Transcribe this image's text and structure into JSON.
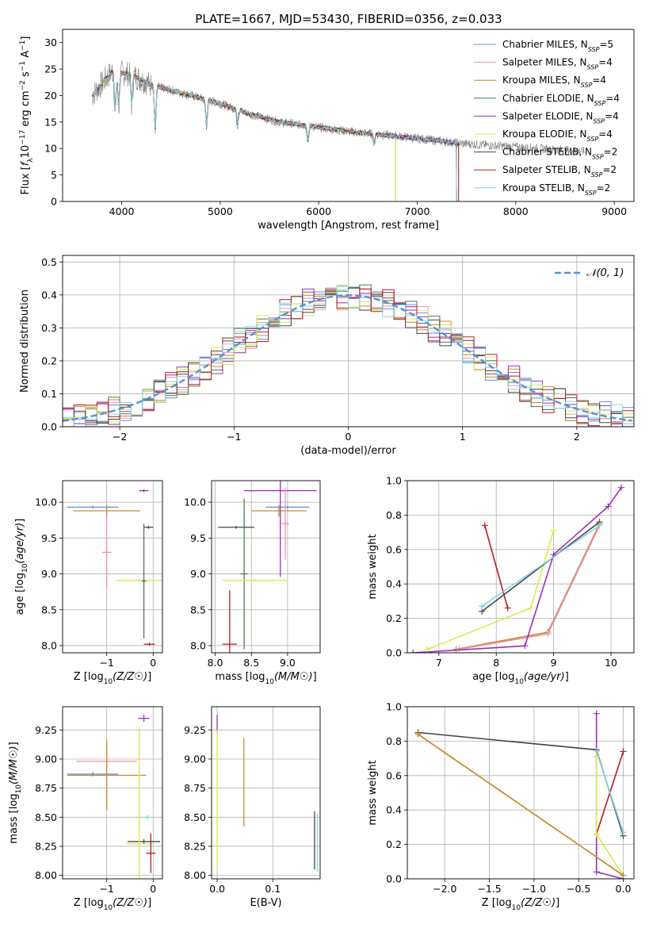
{
  "figure": {
    "title": "PLATE=1667, MJD=53430, FIBERID=0356, z=0.033"
  },
  "models": [
    {
      "name": "Chabrier MILES",
      "nssp": "5",
      "color": "#6a8fdc"
    },
    {
      "name": "Salpeter MILES",
      "nssp": "4",
      "color": "#e893b4"
    },
    {
      "name": "Kroupa MILES",
      "nssp": "4",
      "color": "#c88a2c"
    },
    {
      "name": "Chabrier ELODIE",
      "nssp": "4",
      "color": "#4e7a4e"
    },
    {
      "name": "Salpeter ELODIE",
      "nssp": "4",
      "color": "#9a2fb4"
    },
    {
      "name": "Kroupa ELODIE",
      "nssp": "4",
      "color": "#dde84a"
    },
    {
      "name": "Chabrier STELIB",
      "nssp": "2",
      "color": "#444444"
    },
    {
      "name": "Salpeter STELIB",
      "nssp": "2",
      "color": "#b41e1e"
    },
    {
      "name": "Kroupa STELIB",
      "nssp": "2",
      "color": "#7fd6e6"
    }
  ],
  "chart_data": [
    {
      "id": "spectrum",
      "type": "line",
      "xlabel": "wavelength [Angstrom, rest frame]",
      "xlim": [
        3400,
        9200
      ],
      "ylim": [
        0,
        32.5
      ],
      "xticks": [
        4000,
        5000,
        6000,
        7000,
        8000,
        9000
      ],
      "yticks": [
        0,
        5,
        10,
        15,
        20,
        25,
        30
      ],
      "x": [
        3700,
        3900,
        4100,
        4300,
        4500,
        4700,
        5000,
        5300,
        5600,
        6000,
        6400,
        6800,
        7200,
        7400
      ],
      "y": [
        20,
        24.5,
        24,
        22,
        21,
        20,
        18.5,
        16.5,
        15,
        14,
        13,
        12.3,
        11.5,
        11
      ],
      "observed_color": "#808080",
      "observed_end": 8700,
      "grid": false
    },
    {
      "id": "residuals",
      "type": "histogram",
      "xlabel": "(data-model)/error",
      "ylabel": "Normed distribution",
      "xlim": [
        -2.5,
        2.5
      ],
      "ylim": [
        0,
        0.52
      ],
      "xticks": [
        -2,
        -1,
        0,
        1,
        2
      ],
      "yticks": [
        0.0,
        0.1,
        0.2,
        0.3,
        0.4,
        0.5
      ],
      "bin_width": 0.1,
      "legend": "N(0,1)",
      "reference_curve": {
        "type": "gaussian",
        "mean": 0,
        "sigma": 1,
        "color": "#5b8fd6"
      },
      "grid": true
    },
    {
      "id": "age-vs-metallicity",
      "type": "error-cross",
      "xlabel": "Z [log10(Z/Z☉)]",
      "ylabel": "age [log10(age/yr)]",
      "xlim": [
        -1.95,
        0.2
      ],
      "ylim": [
        7.9,
        10.3
      ],
      "xticks": [
        -1,
        0
      ],
      "yticks": [
        8.0,
        8.5,
        9.0,
        9.5,
        10.0
      ],
      "points": [
        {
          "model": 0,
          "x": -1.3,
          "xerr": 0.55,
          "y": 9.93,
          "yerr": 0.02
        },
        {
          "model": 2,
          "x": -1.0,
          "xerr": 0.72,
          "y": 9.88,
          "yerr": 0.08
        },
        {
          "model": 1,
          "x": -1.0,
          "xerr": 0.1,
          "y": 9.3,
          "yerr": 0.5
        },
        {
          "model": 4,
          "x": -0.2,
          "xerr": 0.1,
          "y": 10.16,
          "yerr": 0.02
        },
        {
          "model": 6,
          "x": -0.1,
          "xerr": 0.1,
          "y": 9.65,
          "yerr": 0.02
        },
        {
          "model": 5,
          "x": -0.3,
          "xerr": 0.5,
          "y": 8.91,
          "yerr": 0.02
        },
        {
          "model": 7,
          "x": -0.08,
          "xerr": 0.12,
          "y": 8.02,
          "yerr": 0.02
        },
        {
          "model": 3,
          "x": -0.2,
          "xerr": 0.05,
          "y": 8.9,
          "yerr": 0.8
        }
      ]
    },
    {
      "id": "age-vs-mass",
      "type": "error-cross",
      "xlabel": "mass [log10(M/M☉)]",
      "xlim": [
        7.95,
        9.45
      ],
      "ylim": [
        7.9,
        10.3
      ],
      "xticks": [
        8.0,
        8.5,
        9.0
      ],
      "yticks": [
        8.0,
        8.5,
        9.0,
        9.5,
        10.0
      ],
      "points": [
        {
          "model": 0,
          "x": 9.0,
          "xerr": 0.3,
          "y": 9.93,
          "yerr": 0.02
        },
        {
          "model": 2,
          "x": 8.88,
          "xerr": 0.38,
          "y": 9.88,
          "yerr": 0.08
        },
        {
          "model": 4,
          "x": 8.9,
          "xerr": 0.5,
          "y": 10.16,
          "yerr": 1.2
        },
        {
          "model": 6,
          "x": 8.29,
          "xerr": 0.25,
          "y": 9.65,
          "yerr": 0.02
        },
        {
          "model": 3,
          "x": 8.4,
          "xerr": 0.05,
          "y": 9.0,
          "yerr": 1.05
        },
        {
          "model": 5,
          "x": 8.55,
          "xerr": 0.45,
          "y": 8.91,
          "yerr": 0.02
        },
        {
          "model": 7,
          "x": 8.2,
          "xerr": 0.1,
          "y": 8.02,
          "yerr": 0.75
        },
        {
          "model": 1,
          "x": 8.97,
          "xerr": 0.05,
          "y": 9.7,
          "yerr": 0.5
        }
      ]
    },
    {
      "id": "mass-weight-vs-age",
      "type": "line",
      "xlabel": "age [log10(age/yr)]",
      "ylabel": "mass weight",
      "xlim": [
        6.45,
        10.4
      ],
      "ylim": [
        0,
        1.0
      ],
      "xticks": [
        7,
        8,
        9,
        10
      ],
      "yticks": [
        0.0,
        0.2,
        0.4,
        0.6,
        0.8,
        1.0
      ],
      "series": [
        {
          "model": 2,
          "x": [
            7.3,
            8.9,
            9.8
          ],
          "y": [
            0.02,
            0.12,
            0.75
          ]
        },
        {
          "model": 1,
          "x": [
            7.35,
            8.9,
            9.8
          ],
          "y": [
            0.02,
            0.11,
            0.74
          ]
        },
        {
          "model": 4,
          "x": [
            6.55,
            8.5,
            9.0,
            9.95,
            10.18
          ],
          "y": [
            0.0,
            0.04,
            0.57,
            0.85,
            0.96
          ]
        },
        {
          "model": 5,
          "x": [
            6.8,
            8.6,
            9.0
          ],
          "y": [
            0.02,
            0.26,
            0.71
          ]
        },
        {
          "model": 7,
          "x": [
            7.8,
            8.2
          ],
          "y": [
            0.74,
            0.26
          ]
        },
        {
          "model": 6,
          "x": [
            7.75,
            9.8
          ],
          "y": [
            0.24,
            0.76
          ]
        },
        {
          "model": 8,
          "x": [
            7.75,
            9.8
          ],
          "y": [
            0.27,
            0.74
          ]
        }
      ]
    },
    {
      "id": "mass-vs-metallicity",
      "type": "error-cross",
      "xlabel": "Z [log10(Z/Z☉)]",
      "ylabel": "mass [log10(M/M☉)]",
      "xlim": [
        -1.95,
        0.2
      ],
      "ylim": [
        7.97,
        9.45
      ],
      "xticks": [
        -1,
        0
      ],
      "yticks": [
        8.0,
        8.25,
        8.5,
        8.75,
        9.0,
        9.25
      ],
      "points": [
        {
          "model": 0,
          "x": -1.3,
          "xerr": 0.55,
          "y": 8.87,
          "yerr": 0.02
        },
        {
          "model": 1,
          "x": -1.0,
          "xerr": 0.65,
          "y": 8.98,
          "yerr": 0.02
        },
        {
          "model": 2,
          "x": -1.0,
          "xerr": 0.85,
          "y": 8.86,
          "yerr": 0.3
        },
        {
          "model": 4,
          "x": -0.2,
          "xerr": 0.12,
          "y": 9.35,
          "yerr": 0.03
        },
        {
          "model": 6,
          "x": -0.2,
          "xerr": 0.35,
          "y": 8.29,
          "yerr": 0.02
        },
        {
          "model": 5,
          "x": -0.3,
          "xerr": 0.3,
          "y": 8.27,
          "yerr": 1.0
        },
        {
          "model": 7,
          "x": -0.05,
          "xerr": 0.1,
          "y": 8.19,
          "yerr": 0.17
        },
        {
          "model": 8,
          "x": -0.12,
          "xerr": 0.06,
          "y": 8.5,
          "yerr": 0.02
        }
      ]
    },
    {
      "id": "mass-vs-ebv",
      "type": "error-cross",
      "xlabel": "E(B-V)",
      "xlim": [
        -0.01,
        0.185
      ],
      "ylim": [
        7.97,
        9.45
      ],
      "xticks": [
        0.0,
        0.1
      ],
      "yticks": [
        8.0,
        8.25,
        8.5,
        8.75,
        9.0,
        9.25
      ],
      "points": [
        {
          "model": 4,
          "x": 0.0,
          "xerr": 0.0,
          "y": 9.3,
          "yerr": 0.08
        },
        {
          "model": 5,
          "x": 0.0,
          "xerr": 0.0,
          "y": 8.65,
          "yerr": 0.6
        },
        {
          "model": 2,
          "x": 0.048,
          "xerr": 0.0,
          "y": 8.8,
          "yerr": 0.38
        },
        {
          "model": 6,
          "x": 0.175,
          "xerr": 0.0,
          "y": 8.3,
          "yerr": 0.25
        },
        {
          "model": 8,
          "x": 0.18,
          "xerr": 0.0,
          "y": 8.28,
          "yerr": 0.25
        }
      ]
    },
    {
      "id": "mass-weight-vs-metallicity",
      "type": "line",
      "xlabel": "Z [log10(Z/Z☉)]",
      "ylabel": "mass weight",
      "xlim": [
        -2.42,
        0.12
      ],
      "ylim": [
        0,
        1.0
      ],
      "xticks": [
        -2.0,
        -1.5,
        -1.0,
        -0.5,
        0.0
      ],
      "yticks": [
        0.0,
        0.2,
        0.4,
        0.6,
        0.8,
        1.0
      ],
      "series": [
        {
          "model": 6,
          "x": [
            -2.3,
            -0.3,
            0.0
          ],
          "y": [
            0.85,
            0.75,
            0.25
          ]
        },
        {
          "model": 4,
          "x": [
            -0.3,
            -0.3,
            0.0
          ],
          "y": [
            0.96,
            0.04,
            0.0
          ]
        },
        {
          "model": 7,
          "x": [
            -0.3,
            0.0
          ],
          "y": [
            0.26,
            0.74
          ]
        },
        {
          "model": 8,
          "x": [
            -0.3,
            0.0
          ],
          "y": [
            0.74,
            0.27
          ]
        },
        {
          "model": 5,
          "x": [
            -0.3,
            -0.3,
            0.0
          ],
          "y": [
            0.71,
            0.26,
            0.02
          ]
        },
        {
          "model": 1,
          "x": [
            -2.3,
            0.0
          ],
          "y": [
            0.84,
            0.02
          ]
        },
        {
          "model": 2,
          "x": [
            -2.3,
            0.0
          ],
          "y": [
            0.84,
            0.02
          ]
        }
      ]
    }
  ]
}
